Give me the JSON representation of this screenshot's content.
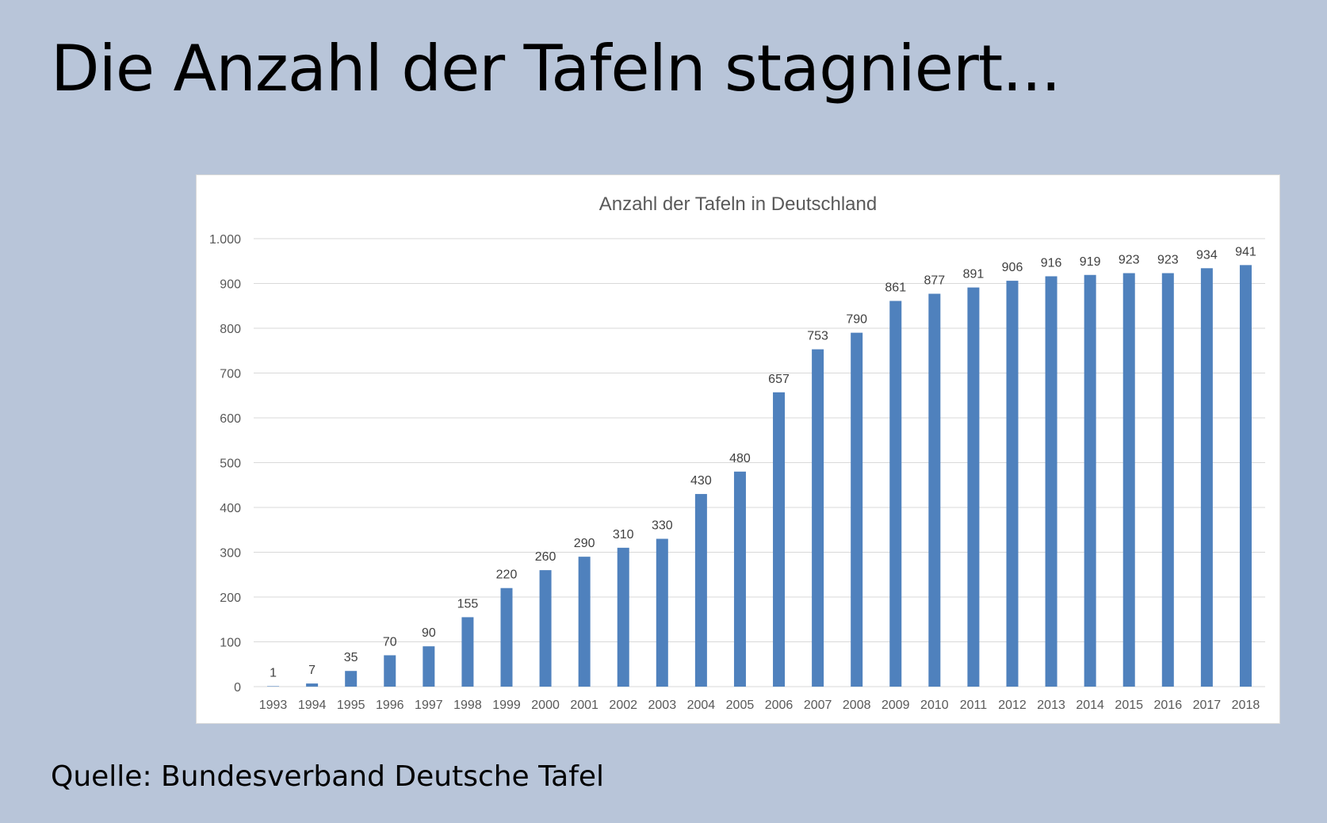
{
  "slide": {
    "title": "Die Anzahl der Tafeln stagniert...",
    "source": "Quelle: Bundesverband Deutsche Tafel"
  },
  "colors": {
    "background": "#b8c5d9",
    "bar": "#4f81bd",
    "gridline": "#d9d9d9",
    "axis_text": "#595959"
  },
  "chart_data": {
    "type": "bar",
    "title": "Anzahl der Tafeln in Deutschland",
    "xlabel": "",
    "ylabel": "",
    "categories": [
      "1993",
      "1994",
      "1995",
      "1996",
      "1997",
      "1998",
      "1999",
      "2000",
      "2001",
      "2002",
      "2003",
      "2004",
      "2005",
      "2006",
      "2007",
      "2008",
      "2009",
      "2010",
      "2011",
      "2012",
      "2013",
      "2014",
      "2015",
      "2016",
      "2017",
      "2018"
    ],
    "values": [
      1,
      7,
      35,
      70,
      90,
      155,
      220,
      260,
      290,
      310,
      330,
      430,
      480,
      657,
      753,
      790,
      861,
      877,
      891,
      906,
      916,
      919,
      923,
      923,
      934,
      941
    ],
    "data_labels": [
      "1",
      "7",
      "35",
      "70",
      "90",
      "155",
      "220",
      "260",
      "290",
      "310",
      "330",
      "430",
      "480",
      "657",
      "753",
      "790",
      "861",
      "877",
      "891",
      "906",
      "916",
      "919",
      "923",
      "923",
      "934",
      "941"
    ],
    "yticks": [
      0,
      100,
      200,
      300,
      400,
      500,
      600,
      700,
      800,
      900,
      1000
    ],
    "ytick_labels": [
      "0",
      "100",
      "200",
      "300",
      "400",
      "500",
      "600",
      "700",
      "800",
      "900",
      "1.000"
    ],
    "ylim": [
      0,
      1000
    ],
    "grid": true,
    "legend": "none"
  }
}
